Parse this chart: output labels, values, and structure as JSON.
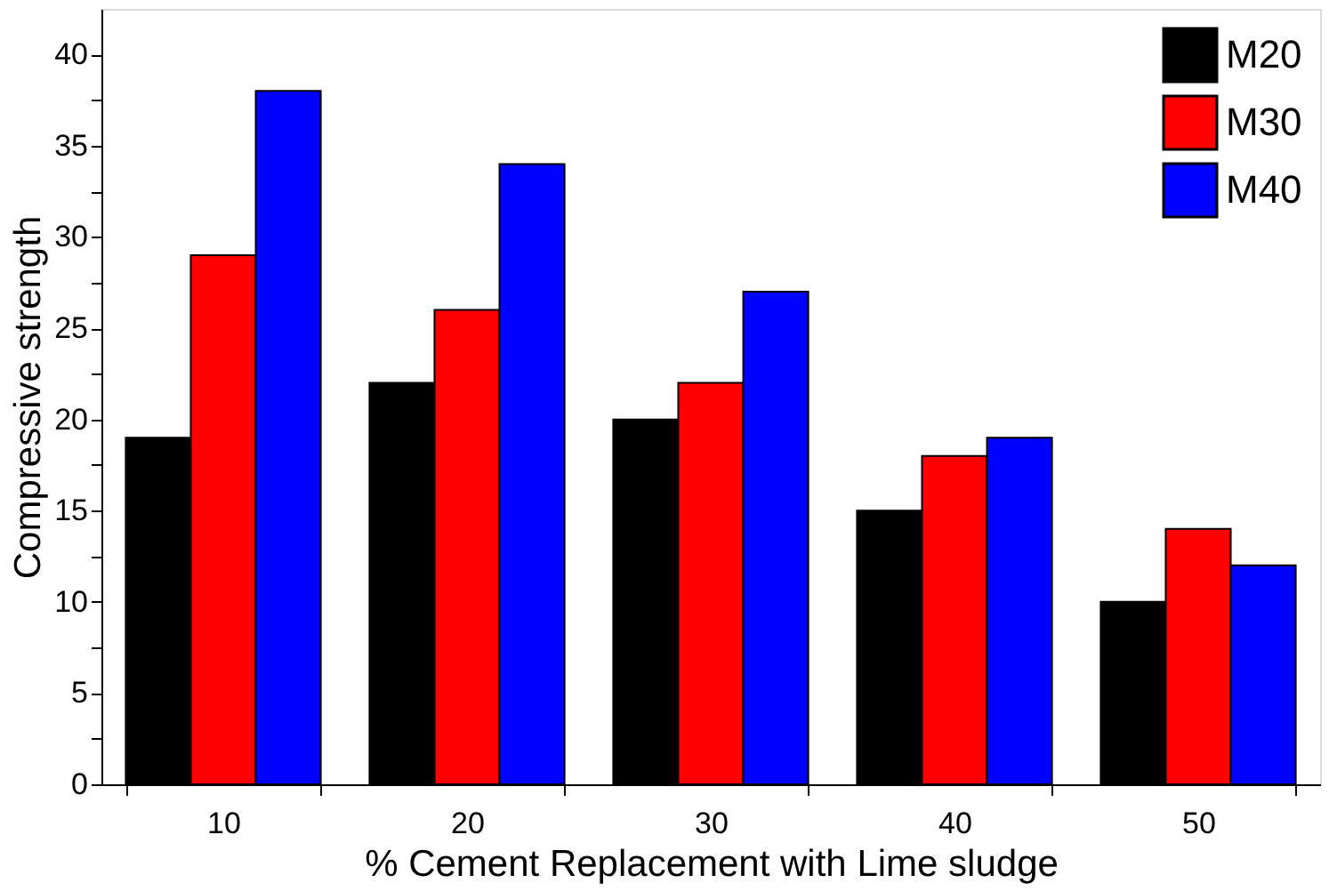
{
  "chart_data": {
    "type": "bar",
    "xlabel": "% Cement Replacement with Lime sludge",
    "ylabel": "Compressive strength",
    "categories": [
      "10",
      "20",
      "30",
      "40",
      "50"
    ],
    "series": [
      {
        "name": "M20",
        "color": "#000000",
        "values": [
          19,
          22,
          20,
          15,
          10
        ]
      },
      {
        "name": "M30",
        "color": "#ff0000",
        "values": [
          29,
          26,
          22,
          18,
          14
        ]
      },
      {
        "name": "M40",
        "color": "#0000ff",
        "values": [
          38,
          34,
          27,
          19,
          12
        ]
      }
    ],
    "ylim": [
      0,
      42.5
    ],
    "yticks": [
      0,
      {
        "value": 2.5,
        "label": null
      },
      5,
      {
        "value": 7.5,
        "label": null
      },
      10,
      {
        "value": 12.5,
        "label": null
      },
      15,
      {
        "value": 17.5,
        "label": null
      },
      20,
      {
        "value": 22.5,
        "label": null
      },
      25,
      {
        "value": 27.5,
        "label": null
      },
      30,
      {
        "value": 32.5,
        "label": null
      },
      35,
      {
        "value": 37.5,
        "label": null
      },
      40
    ],
    "grid": false,
    "legend": "top right"
  }
}
